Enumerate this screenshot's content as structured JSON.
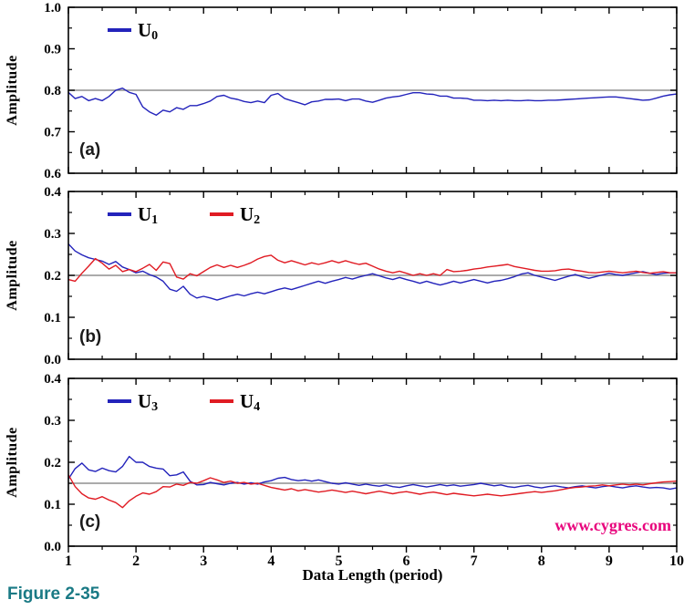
{
  "figure": {
    "caption": "Figure 2-35",
    "caption_color": "#1a7a85",
    "watermark": "www.cygres.com",
    "watermark_color": "#e8057d",
    "reference_line_color": "#8f8f8f",
    "frame_color": "#000000"
  },
  "x_axis": {
    "label": "Data Length (period)",
    "xlim": [
      1,
      10
    ],
    "tick_labels": [
      "1",
      "2",
      "3",
      "4",
      "5",
      "6",
      "7",
      "8",
      "9",
      "10"
    ],
    "minor_tick_step": 0.5
  },
  "chart_data": [
    {
      "type": "line",
      "panel_label": "(a)",
      "ylabel": "Amplitude",
      "ylim": [
        0.6,
        1.0
      ],
      "ytick_labels": [
        "0.6",
        "0.7",
        "0.8",
        "0.9",
        "1.0"
      ],
      "ytick_step": 0.1,
      "reference_line": 0.8,
      "legend": [
        {
          "name": "U0",
          "base": "U",
          "sub": "0",
          "color": "#2323bb"
        }
      ],
      "series": [
        {
          "name": "U0",
          "color": "#2323bb",
          "x_start": 1,
          "x_step": 0.1,
          "values": [
            0.795,
            0.78,
            0.785,
            0.775,
            0.78,
            0.775,
            0.785,
            0.8,
            0.805,
            0.795,
            0.79,
            0.76,
            0.748,
            0.74,
            0.752,
            0.748,
            0.758,
            0.754,
            0.763,
            0.763,
            0.768,
            0.774,
            0.785,
            0.788,
            0.781,
            0.778,
            0.773,
            0.77,
            0.774,
            0.77,
            0.788,
            0.792,
            0.78,
            0.775,
            0.77,
            0.765,
            0.772,
            0.774,
            0.778,
            0.778,
            0.779,
            0.775,
            0.779,
            0.779,
            0.774,
            0.771,
            0.776,
            0.781,
            0.784,
            0.786,
            0.79,
            0.794,
            0.794,
            0.791,
            0.79,
            0.786,
            0.786,
            0.781,
            0.781,
            0.78,
            0.776,
            0.776,
            0.775,
            0.776,
            0.775,
            0.776,
            0.775,
            0.775,
            0.776,
            0.775,
            0.775,
            0.776,
            0.776,
            0.777,
            0.778,
            0.779,
            0.78,
            0.781,
            0.782,
            0.783,
            0.784,
            0.784,
            0.782,
            0.78,
            0.778,
            0.776,
            0.777,
            0.781,
            0.786,
            0.789,
            0.791
          ]
        }
      ]
    },
    {
      "type": "line",
      "panel_label": "(b)",
      "ylabel": "Amplitude",
      "ylim": [
        0.0,
        0.4
      ],
      "ytick_labels": [
        "0.0",
        "0.1",
        "0.2",
        "0.3",
        "0.4"
      ],
      "ytick_step": 0.1,
      "reference_line": 0.2,
      "legend": [
        {
          "name": "U1",
          "base": "U",
          "sub": "1",
          "color": "#2323bb"
        },
        {
          "name": "U2",
          "base": "U",
          "sub": "2",
          "color": "#e01b23"
        }
      ],
      "series": [
        {
          "name": "U1",
          "color": "#2323bb",
          "x_start": 1,
          "x_step": 0.1,
          "values": [
            0.275,
            0.258,
            0.249,
            0.242,
            0.238,
            0.234,
            0.226,
            0.233,
            0.22,
            0.214,
            0.206,
            0.21,
            0.202,
            0.196,
            0.186,
            0.167,
            0.162,
            0.174,
            0.155,
            0.146,
            0.15,
            0.146,
            0.141,
            0.146,
            0.151,
            0.155,
            0.151,
            0.156,
            0.16,
            0.156,
            0.161,
            0.166,
            0.17,
            0.166,
            0.171,
            0.176,
            0.181,
            0.186,
            0.181,
            0.186,
            0.19,
            0.195,
            0.191,
            0.196,
            0.2,
            0.204,
            0.199,
            0.194,
            0.19,
            0.195,
            0.19,
            0.186,
            0.181,
            0.186,
            0.181,
            0.177,
            0.181,
            0.186,
            0.182,
            0.186,
            0.19,
            0.186,
            0.182,
            0.186,
            0.188,
            0.192,
            0.197,
            0.203,
            0.206,
            0.2,
            0.196,
            0.192,
            0.188,
            0.193,
            0.198,
            0.202,
            0.197,
            0.193,
            0.197,
            0.201,
            0.205,
            0.202,
            0.2,
            0.203,
            0.206,
            0.209,
            0.205,
            0.202,
            0.205,
            0.206,
            0.206
          ]
        },
        {
          "name": "U2",
          "color": "#e01b23",
          "x_start": 1,
          "x_step": 0.1,
          "values": [
            0.19,
            0.186,
            0.205,
            0.222,
            0.24,
            0.229,
            0.215,
            0.224,
            0.209,
            0.214,
            0.209,
            0.217,
            0.226,
            0.212,
            0.232,
            0.228,
            0.196,
            0.191,
            0.204,
            0.199,
            0.209,
            0.219,
            0.225,
            0.219,
            0.224,
            0.219,
            0.224,
            0.23,
            0.239,
            0.245,
            0.248,
            0.236,
            0.23,
            0.235,
            0.23,
            0.225,
            0.23,
            0.226,
            0.23,
            0.235,
            0.23,
            0.235,
            0.23,
            0.226,
            0.229,
            0.222,
            0.215,
            0.21,
            0.206,
            0.21,
            0.205,
            0.2,
            0.204,
            0.2,
            0.204,
            0.2,
            0.214,
            0.209,
            0.21,
            0.212,
            0.215,
            0.217,
            0.22,
            0.222,
            0.224,
            0.226,
            0.221,
            0.218,
            0.215,
            0.212,
            0.21,
            0.21,
            0.211,
            0.214,
            0.215,
            0.212,
            0.21,
            0.207,
            0.206,
            0.208,
            0.21,
            0.208,
            0.206,
            0.208,
            0.21,
            0.207,
            0.205,
            0.207,
            0.209,
            0.206,
            0.206
          ]
        }
      ]
    },
    {
      "type": "line",
      "panel_label": "(c)",
      "ylabel": "Amplitude",
      "ylim": [
        0.0,
        0.4
      ],
      "ytick_labels": [
        "0.0",
        "0.1",
        "0.2",
        "0.3",
        "0.4"
      ],
      "ytick_step": 0.1,
      "reference_line": 0.15,
      "legend": [
        {
          "name": "U3",
          "base": "U",
          "sub": "3",
          "color": "#2323bb"
        },
        {
          "name": "U4",
          "base": "U",
          "sub": "4",
          "color": "#e01b23"
        }
      ],
      "series": [
        {
          "name": "U3",
          "color": "#2323bb",
          "x_start": 1,
          "x_step": 0.1,
          "values": [
            0.16,
            0.185,
            0.198,
            0.182,
            0.178,
            0.186,
            0.18,
            0.177,
            0.19,
            0.214,
            0.2,
            0.2,
            0.19,
            0.186,
            0.184,
            0.168,
            0.17,
            0.177,
            0.155,
            0.146,
            0.147,
            0.152,
            0.149,
            0.146,
            0.15,
            0.152,
            0.148,
            0.151,
            0.148,
            0.153,
            0.156,
            0.162,
            0.164,
            0.159,
            0.156,
            0.158,
            0.155,
            0.158,
            0.154,
            0.15,
            0.148,
            0.151,
            0.148,
            0.145,
            0.148,
            0.145,
            0.143,
            0.146,
            0.142,
            0.14,
            0.144,
            0.147,
            0.144,
            0.141,
            0.144,
            0.147,
            0.144,
            0.146,
            0.143,
            0.145,
            0.147,
            0.15,
            0.147,
            0.144,
            0.146,
            0.142,
            0.14,
            0.143,
            0.145,
            0.141,
            0.139,
            0.142,
            0.144,
            0.141,
            0.139,
            0.142,
            0.144,
            0.141,
            0.139,
            0.142,
            0.144,
            0.141,
            0.139,
            0.142,
            0.144,
            0.141,
            0.139,
            0.14,
            0.139,
            0.136,
            0.139
          ]
        },
        {
          "name": "U4",
          "color": "#e01b23",
          "x_start": 1,
          "x_step": 0.1,
          "values": [
            0.17,
            0.142,
            0.125,
            0.115,
            0.112,
            0.118,
            0.11,
            0.104,
            0.092,
            0.108,
            0.119,
            0.127,
            0.124,
            0.13,
            0.142,
            0.141,
            0.148,
            0.145,
            0.152,
            0.15,
            0.156,
            0.163,
            0.158,
            0.152,
            0.155,
            0.15,
            0.152,
            0.148,
            0.15,
            0.145,
            0.14,
            0.137,
            0.134,
            0.137,
            0.132,
            0.135,
            0.132,
            0.129,
            0.131,
            0.134,
            0.131,
            0.128,
            0.131,
            0.128,
            0.125,
            0.128,
            0.131,
            0.128,
            0.125,
            0.128,
            0.13,
            0.127,
            0.124,
            0.127,
            0.129,
            0.126,
            0.123,
            0.126,
            0.124,
            0.122,
            0.12,
            0.122,
            0.124,
            0.122,
            0.12,
            0.122,
            0.124,
            0.126,
            0.128,
            0.13,
            0.128,
            0.13,
            0.132,
            0.135,
            0.138,
            0.14,
            0.141,
            0.143,
            0.144,
            0.146,
            0.144,
            0.146,
            0.148,
            0.146,
            0.148,
            0.146,
            0.149,
            0.151,
            0.153,
            0.154,
            0.155
          ]
        }
      ]
    }
  ]
}
